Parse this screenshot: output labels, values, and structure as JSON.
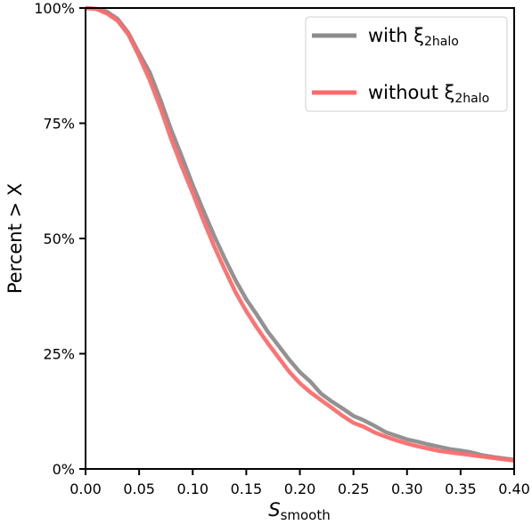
{
  "chart_data": {
    "type": "line",
    "title": "",
    "xlabel": "S",
    "xlabel_sub": "smooth",
    "ylabel": "Percent > X",
    "xlim": [
      0.0,
      0.4
    ],
    "ylim": [
      0,
      100
    ],
    "x_ticks": [
      "0.00",
      "0.05",
      "0.10",
      "0.15",
      "0.20",
      "0.25",
      "0.30",
      "0.35",
      "0.40"
    ],
    "y_ticks": [
      "0%",
      "25%",
      "50%",
      "75%",
      "100%"
    ],
    "grid": false,
    "legend_position": "top-right",
    "series": [
      {
        "name": "with ξ",
        "name_sub": "2halo",
        "color": "#8c8c8c",
        "x": [
          0.0,
          0.01,
          0.02,
          0.03,
          0.04,
          0.05,
          0.06,
          0.07,
          0.08,
          0.09,
          0.1,
          0.11,
          0.12,
          0.13,
          0.14,
          0.15,
          0.16,
          0.17,
          0.18,
          0.19,
          0.2,
          0.21,
          0.22,
          0.23,
          0.24,
          0.25,
          0.26,
          0.27,
          0.28,
          0.29,
          0.3,
          0.31,
          0.32,
          0.33,
          0.34,
          0.35,
          0.36,
          0.37,
          0.38,
          0.39,
          0.4
        ],
        "y": [
          100,
          99.8,
          99.2,
          97.6,
          94.6,
          90.2,
          86.0,
          80.0,
          73.5,
          67.7,
          61.6,
          56.0,
          50.6,
          45.6,
          40.9,
          36.8,
          33.4,
          29.8,
          26.8,
          23.7,
          21.0,
          18.9,
          16.3,
          14.6,
          13.1,
          11.5,
          10.5,
          9.3,
          8.0,
          7.2,
          6.4,
          5.9,
          5.3,
          4.8,
          4.3,
          4.0,
          3.6,
          3.0,
          2.6,
          2.3,
          2.0
        ]
      },
      {
        "name": "without ξ",
        "name_sub": "2halo",
        "color": "#ff6b6b",
        "x": [
          0.0,
          0.01,
          0.02,
          0.03,
          0.04,
          0.05,
          0.06,
          0.07,
          0.08,
          0.09,
          0.1,
          0.11,
          0.12,
          0.13,
          0.14,
          0.15,
          0.16,
          0.17,
          0.18,
          0.19,
          0.2,
          0.21,
          0.22,
          0.23,
          0.24,
          0.25,
          0.26,
          0.27,
          0.28,
          0.29,
          0.3,
          0.31,
          0.32,
          0.33,
          0.34,
          0.35,
          0.36,
          0.37,
          0.38,
          0.39,
          0.4
        ],
        "y": [
          100,
          99.8,
          98.8,
          97.2,
          94.2,
          89.5,
          84.3,
          78.2,
          71.5,
          65.5,
          59.8,
          53.9,
          48.3,
          43.2,
          38.3,
          34.2,
          30.6,
          27.3,
          24.2,
          21.1,
          18.6,
          16.6,
          14.9,
          13.2,
          11.5,
          10.0,
          9.1,
          7.9,
          7.0,
          6.2,
          5.5,
          4.9,
          4.4,
          3.9,
          3.6,
          3.3,
          3.0,
          2.7,
          2.4,
          2.1,
          1.8
        ]
      }
    ]
  }
}
